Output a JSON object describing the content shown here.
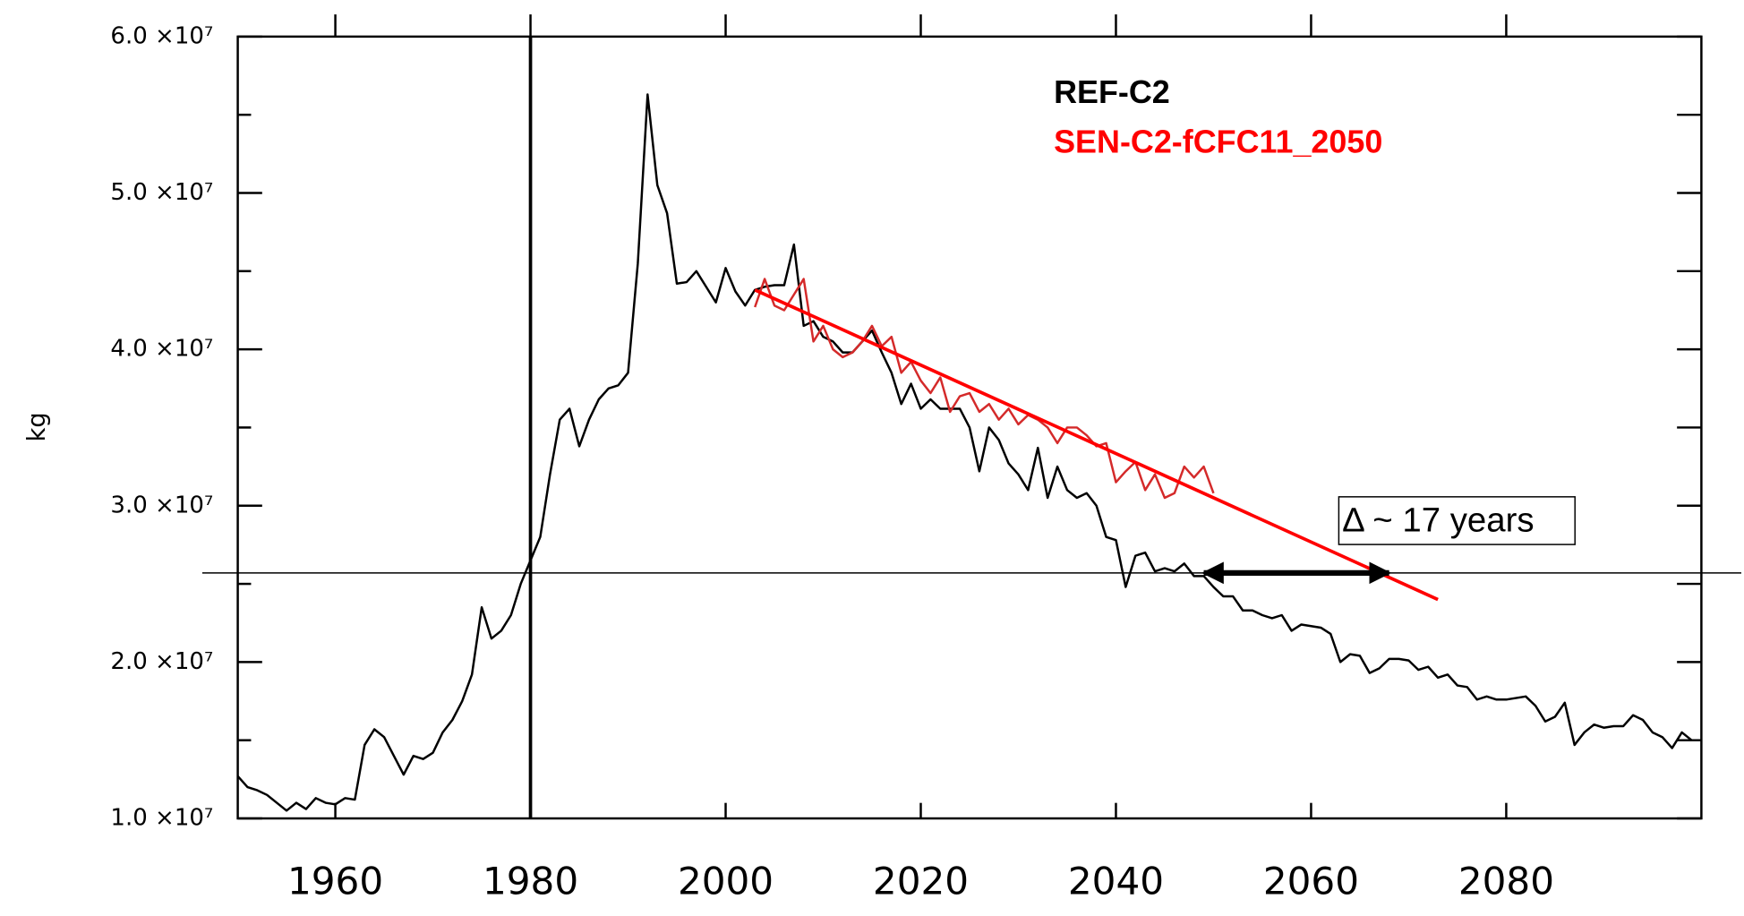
{
  "chart_data": {
    "type": "line",
    "y_label": "kg",
    "xlim": [
      1950,
      2100
    ],
    "xticks": [
      1960,
      1980,
      2000,
      2020,
      2040,
      2060,
      2080
    ],
    "ylim": [
      10000000.0,
      60000000.0
    ],
    "yticks": [
      {
        "value": 10000000.0,
        "label": "1.0 ×10⁷"
      },
      {
        "value": 20000000.0,
        "label": "2.0 ×10⁷"
      },
      {
        "value": 30000000.0,
        "label": "3.0 ×10⁷"
      },
      {
        "value": 40000000.0,
        "label": "4.0 ×10⁷"
      },
      {
        "value": 50000000.0,
        "label": "5.0 ×10⁷"
      },
      {
        "value": 60000000.0,
        "label": "6.0 ×10⁷"
      }
    ],
    "yminor_ticks": [
      15000000.0,
      25000000.0,
      35000000.0,
      45000000.0,
      55000000.0
    ],
    "legend": "upper center",
    "series": [
      {
        "name": "REF-C2",
        "color": "#000000",
        "x": [
          1950,
          1951,
          1952,
          1953,
          1954,
          1955,
          1956,
          1957,
          1958,
          1959,
          1960,
          1961,
          1962,
          1963,
          1964,
          1965,
          1966,
          1967,
          1968,
          1969,
          1970,
          1971,
          1972,
          1973,
          1974,
          1975,
          1976,
          1977,
          1978,
          1979,
          1980,
          1981,
          1982,
          1983,
          1984,
          1985,
          1986,
          1987,
          1988,
          1989,
          1990,
          1991,
          1992,
          1993,
          1994,
          1995,
          1996,
          1997,
          1998,
          1999,
          2000,
          2001,
          2002,
          2003,
          2004,
          2005,
          2006,
          2007,
          2008,
          2009,
          2010,
          2011,
          2012,
          2013,
          2014,
          2015,
          2016,
          2017,
          2018,
          2019,
          2020,
          2021,
          2022,
          2023,
          2024,
          2025,
          2026,
          2027,
          2028,
          2029,
          2030,
          2031,
          2032,
          2033,
          2034,
          2035,
          2036,
          2037,
          2038,
          2039,
          2040,
          2041,
          2042,
          2043,
          2044,
          2045,
          2046,
          2047,
          2048,
          2049,
          2050,
          2051,
          2052,
          2053,
          2054,
          2055,
          2056,
          2057,
          2058,
          2059,
          2060,
          2061,
          2062,
          2063,
          2064,
          2065,
          2066,
          2067,
          2068,
          2069,
          2070,
          2071,
          2072,
          2073,
          2074,
          2075,
          2076,
          2077,
          2078,
          2079,
          2080,
          2081,
          2082,
          2083,
          2084,
          2085,
          2086,
          2087,
          2088,
          2089,
          2090,
          2091,
          2092,
          2093,
          2094,
          2095,
          2096,
          2097,
          2098,
          2099
        ],
        "values": [
          12700000.0,
          12000000.0,
          11800000.0,
          11500000.0,
          11000000.0,
          10500000.0,
          11000000.0,
          10600000.0,
          11300000.0,
          11000000.0,
          10900000.0,
          11300000.0,
          11200000.0,
          14700000.0,
          15700000.0,
          15200000.0,
          14000000.0,
          12800000.0,
          14000000.0,
          13800000.0,
          14200000.0,
          15500000.0,
          16300000.0,
          17500000.0,
          19200000.0,
          23500000.0,
          21500000.0,
          22000000.0,
          23000000.0,
          25000000.0,
          26500000.0,
          28000000.0,
          32000000.0,
          35500000.0,
          36200000.0,
          33800000.0,
          35500000.0,
          36800000.0,
          37500000.0,
          37700000.0,
          38500000.0,
          45500000.0,
          56300000.0,
          50500000.0,
          48700000.0,
          44200000.0,
          44300000.0,
          45000000.0,
          44000000.0,
          43000000.0,
          45200000.0,
          43700000.0,
          42800000.0,
          43800000.0,
          44000000.0,
          44100000.0,
          44100000.0,
          46700000.0,
          41500000.0,
          41800000.0,
          40800000.0,
          40500000.0,
          39800000.0,
          39800000.0,
          40500000.0,
          41200000.0,
          39800000.0,
          38500000.0,
          36500000.0,
          37800000.0,
          36200000.0,
          36800000.0,
          36200000.0,
          36200000.0,
          36200000.0,
          35000000.0,
          32200000.0,
          35000000.0,
          34200000.0,
          32700000.0,
          32000000.0,
          31000000.0,
          33700000.0,
          30500000.0,
          32500000.0,
          31000000.0,
          30500000.0,
          30800000.0,
          30000000.0,
          28000000.0,
          27800000.0,
          24800000.0,
          26800000.0,
          27000000.0,
          25800000.0,
          26000000.0,
          25800000.0,
          26300000.0,
          25500000.0,
          25500000.0,
          24800000.0,
          24200000.0,
          24200000.0,
          23300000.0,
          23300000.0,
          23000000.0,
          22800000.0,
          23000000.0,
          22000000.0,
          22400000.0,
          22300000.0,
          22200000.0,
          21800000.0,
          20000000.0,
          20500000.0,
          20400000.0,
          19300000.0,
          19600000.0,
          20200000.0,
          20200000.0,
          20100000.0,
          19500000.0,
          19700000.0,
          19000000.0,
          19200000.0,
          18500000.0,
          18400000.0,
          17600000.0,
          17800000.0,
          17600000.0,
          17600000.0,
          17700000.0,
          17800000.0,
          17200000.0,
          16200000.0,
          16500000.0,
          17400000.0,
          14700000.0,
          15500000.0,
          16000000.0,
          15800000.0,
          15900000.0,
          15900000.0,
          16600000.0,
          16300000.0,
          15500000.0,
          15200000.0,
          14500000.0,
          15500000.0,
          15000000.0
        ]
      },
      {
        "name": "SEN-C2-fCFC11_2050",
        "color": "#d42a2a",
        "x": [
          2003,
          2004,
          2005,
          2006,
          2007,
          2008,
          2009,
          2010,
          2011,
          2012,
          2013,
          2014,
          2015,
          2016,
          2017,
          2018,
          2019,
          2020,
          2021,
          2022,
          2023,
          2024,
          2025,
          2026,
          2027,
          2028,
          2029,
          2030,
          2031,
          2032,
          2033,
          2034,
          2035,
          2036,
          2037,
          2038,
          2039,
          2040,
          2041,
          2042,
          2043,
          2044,
          2045,
          2046,
          2047,
          2048,
          2049,
          2050
        ],
        "values": [
          42700000.0,
          44500000.0,
          42800000.0,
          42500000.0,
          43500000.0,
          44500000.0,
          40500000.0,
          41500000.0,
          40000000.0,
          39500000.0,
          39800000.0,
          40500000.0,
          41500000.0,
          40200000.0,
          40800000.0,
          38500000.0,
          39200000.0,
          38000000.0,
          37200000.0,
          38200000.0,
          36000000.0,
          37000000.0,
          37200000.0,
          36000000.0,
          36500000.0,
          35500000.0,
          36200000.0,
          35200000.0,
          35800000.0,
          35500000.0,
          35000000.0,
          34000000.0,
          35000000.0,
          35000000.0,
          34500000.0,
          33800000.0,
          34000000.0,
          31500000.0,
          32200000.0,
          32800000.0,
          31000000.0,
          32000000.0,
          30500000.0,
          30800000.0,
          32500000.0,
          31800000.0,
          32500000.0,
          30800000.0
        ]
      }
    ],
    "trend": {
      "color": "#ff0000",
      "x": [
        2003,
        2073
      ],
      "values": [
        43800000.0,
        24000000.0
      ]
    },
    "hline": 25700000.0,
    "vline": 1980,
    "arrow": {
      "x": [
        2049,
        2068
      ],
      "y": 25700000.0
    },
    "annotation": "Δ ~ 17 years"
  }
}
